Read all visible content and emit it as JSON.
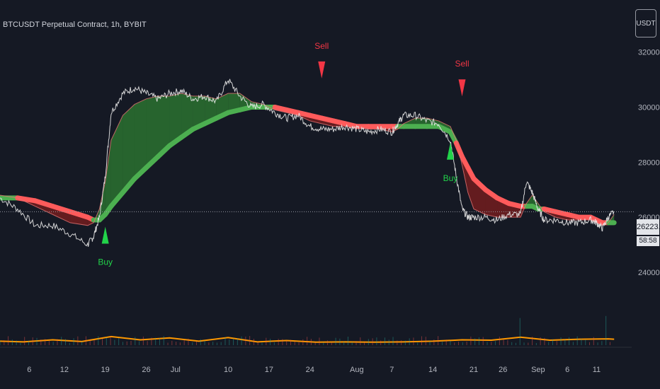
{
  "header": {
    "symbol_title": "BTCUSDT Perpetual Contract, 1h, BYBIT"
  },
  "currency_button": {
    "label": "USDT"
  },
  "last_price": {
    "value": "26223.2",
    "countdown": "58:58"
  },
  "colors": {
    "background": "#151924",
    "price_line": "#e8e8e8",
    "bull_band": "#4caf50",
    "bear_band": "#ff5b5b",
    "bull_fill": "#2e7d32",
    "bear_fill": "#7f1d1d",
    "buy_signal": "#22d34a",
    "sell_signal": "#f23645",
    "volume_line": "#ff9800"
  },
  "chart_data": {
    "type": "line",
    "title": "BTCUSDT Perpetual Contract, 1h, BYBIT",
    "xlabel": "",
    "ylabel": "",
    "ylim": [
      21300,
      32300
    ],
    "y_ticks": [
      "32000.0",
      "30000.0",
      "28000.0",
      "26000.0",
      "24000.0"
    ],
    "y_tick_values": [
      32000,
      30000,
      28000,
      26000,
      24000
    ],
    "x_ticks": [
      "6",
      "12",
      "19",
      "26",
      "Jul",
      "10",
      "17",
      "24",
      "Aug",
      "7",
      "14",
      "21",
      "26",
      "Sep",
      "6",
      "11"
    ],
    "x_tick_days": [
      6,
      12,
      19,
      26,
      31,
      40,
      47,
      54,
      62,
      68,
      75,
      82,
      87,
      93,
      98,
      103
    ],
    "x_range_days": [
      1,
      109
    ],
    "grid": false,
    "legend": "none",
    "series": [
      {
        "name": "",
        "x": [
          1,
          4,
          7,
          10,
          13,
          16,
          17,
          18,
          19,
          20,
          22,
          24,
          26,
          28,
          30,
          32,
          34,
          36,
          38,
          40,
          42,
          44,
          46,
          48,
          50,
          52,
          54,
          56,
          58,
          60,
          62,
          64,
          66,
          68,
          69,
          70,
          72,
          74,
          76,
          78,
          79,
          80,
          81,
          82,
          84,
          86,
          88,
          90,
          91,
          92,
          93,
          94,
          96,
          98,
          100,
          102,
          103,
          104,
          105,
          106
        ],
        "y": [
          26700,
          26300,
          25700,
          25700,
          25400,
          25000,
          25300,
          26000,
          27500,
          29800,
          30500,
          30700,
          30500,
          30300,
          30500,
          30600,
          30300,
          30400,
          30200,
          31000,
          30400,
          30000,
          30100,
          29800,
          29600,
          29700,
          29300,
          29200,
          29200,
          29300,
          29200,
          29100,
          29200,
          29100,
          29400,
          29700,
          29700,
          29500,
          29400,
          28800,
          27500,
          26300,
          26000,
          26000,
          26000,
          25900,
          26100,
          26100,
          27300,
          26900,
          26300,
          25900,
          25900,
          25800,
          25800,
          25900,
          25800,
          25600,
          26000,
          26200
        ]
      },
      {
        "name": "",
        "x": [
          1,
          4,
          7,
          10,
          13,
          16,
          17,
          18,
          19,
          20,
          22,
          24,
          26,
          28,
          30,
          32,
          34,
          36,
          38,
          40,
          42,
          44,
          46,
          48,
          50,
          52,
          54,
          56,
          58,
          60,
          62,
          64,
          66,
          68,
          69,
          70,
          72,
          74,
          76,
          78,
          79,
          80,
          81,
          82,
          84,
          86,
          88,
          90,
          91,
          92,
          93,
          94,
          96,
          98,
          100,
          102,
          103,
          104,
          105,
          106
        ],
        "y": [
          26800,
          26700,
          26400,
          26100,
          25800,
          25700,
          25800,
          26300,
          27300,
          28800,
          29700,
          30100,
          30300,
          30400,
          30400,
          30500,
          30400,
          30400,
          30300,
          30500,
          30500,
          30200,
          30100,
          29900,
          29800,
          29700,
          29500,
          29400,
          29300,
          29300,
          29300,
          29200,
          29200,
          29100,
          29200,
          29400,
          29600,
          29600,
          29500,
          29300,
          28800,
          27900,
          26900,
          26300,
          26100,
          26000,
          26000,
          26000,
          26500,
          26800,
          26500,
          26200,
          26000,
          25900,
          25900,
          25900,
          25800,
          25700,
          25800,
          26100
        ]
      },
      {
        "name": "",
        "x": [
          1,
          4,
          7,
          10,
          13,
          16,
          17,
          18,
          19,
          20,
          22,
          24,
          26,
          28,
          30,
          32,
          34,
          36,
          38,
          40,
          42,
          44,
          46,
          48,
          50,
          52,
          54,
          56,
          58,
          60,
          62,
          64,
          66,
          68,
          69,
          70,
          72,
          74,
          76,
          78,
          79,
          80,
          81,
          82,
          84,
          86,
          88,
          90,
          91,
          92,
          93,
          94,
          96,
          98,
          100,
          102,
          103,
          104,
          105,
          106
        ],
        "y": [
          26700,
          26700,
          26600,
          26400,
          26200,
          26000,
          25900,
          25900,
          26100,
          26400,
          26900,
          27400,
          27800,
          28200,
          28600,
          28900,
          29200,
          29400,
          29600,
          29800,
          29900,
          30000,
          30000,
          30000,
          29900,
          29800,
          29700,
          29600,
          29500,
          29400,
          29300,
          29300,
          29300,
          29300,
          29300,
          29300,
          29300,
          29300,
          29300,
          29100,
          28700,
          28200,
          27800,
          27400,
          27000,
          26700,
          26500,
          26400,
          26400,
          26400,
          26300,
          26300,
          26200,
          26100,
          26000,
          26000,
          25900,
          25800,
          25800,
          25800
        ]
      },
      {
        "name": "",
        "x": [
          1,
          5,
          10,
          15,
          20,
          25,
          30,
          35,
          40,
          45,
          50,
          55,
          60,
          65,
          70,
          75,
          80,
          85,
          90,
          95,
          100,
          105,
          106
        ],
        "y": [
          1.2,
          1.0,
          1.6,
          1.1,
          2.6,
          1.6,
          2.2,
          1.2,
          2.3,
          1.0,
          1.4,
          0.9,
          1.0,
          0.9,
          1.0,
          1.2,
          1.6,
          1.5,
          2.4,
          1.5,
          1.8,
          1.9,
          1.8
        ]
      }
    ],
    "annotations": [
      {
        "type": "sell",
        "label": "Sell",
        "day": 56,
        "price": 31300
      },
      {
        "type": "sell",
        "label": "Sell",
        "day": 80,
        "price": 30650
      },
      {
        "type": "buy",
        "label": "Buy",
        "day": 19,
        "price": 25400
      },
      {
        "type": "buy",
        "label": "Buy",
        "day": 78,
        "price": 28450
      }
    ]
  }
}
